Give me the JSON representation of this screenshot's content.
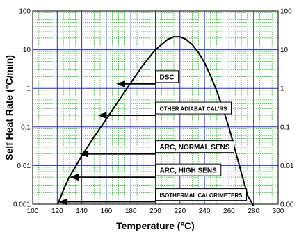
{
  "chart_data": {
    "type": "line",
    "title": "",
    "xlabel": "Temperature (°C)",
    "ylabel": "Self Heat Rate (°C/min)",
    "xlim": [
      100,
      300
    ],
    "ylim": [
      0.001,
      100
    ],
    "y_scale": "log",
    "grid": true,
    "colors": {
      "major_grid": "#2a2ad0",
      "minor_grid": "#1fa61f",
      "curve": "#000000",
      "box": "#ffffff"
    },
    "x_ticks": [
      "100",
      "120",
      "140",
      "160",
      "180",
      "200",
      "220",
      "240",
      "260",
      "280",
      "300"
    ],
    "y_ticks_left": [
      "0.001",
      "0.01",
      "0.1",
      "1",
      "10",
      "100"
    ],
    "y_ticks_right": [
      "0.00",
      "0.01",
      "0.1",
      "1",
      "10",
      "100"
    ],
    "series": [
      {
        "x": [
          120.5,
          125,
          130,
          135,
          140,
          150,
          160,
          170,
          180,
          190,
          200,
          210,
          215,
          220,
          225,
          230,
          235,
          240,
          245,
          250,
          255,
          260,
          265,
          270,
          275,
          280
        ],
        "y": [
          0.001,
          0.0023,
          0.0052,
          0.0095,
          0.018,
          0.055,
          0.16,
          0.48,
          1.4,
          4.0,
          10.0,
          18.5,
          21.5,
          21.5,
          18.5,
          13.5,
          8.5,
          4.6,
          2.1,
          0.85,
          0.3,
          0.095,
          0.025,
          0.0065,
          0.0017,
          0.0009
        ]
      }
    ],
    "annotations": [
      {
        "text": "DSC",
        "arrow_from_x": 200,
        "arrow_to_x": 168,
        "y": 1.3
      },
      {
        "text": "OTHER ADIABAT CAL'RS",
        "arrow_from_x": 200,
        "arrow_to_x": 153,
        "y": 0.2
      },
      {
        "text": "ARC, NORMAL SENS",
        "arrow_from_x": 200,
        "arrow_to_x": 138,
        "y": 0.02
      },
      {
        "text": "ARC, HIGH SENS",
        "arrow_from_x": 200,
        "arrow_to_x": 130,
        "y": 0.005
      },
      {
        "text": "ISOTHERMAL CALORIMETERS",
        "arrow_from_x": 200,
        "arrow_to_x": 121,
        "y": 0.00115
      }
    ]
  }
}
